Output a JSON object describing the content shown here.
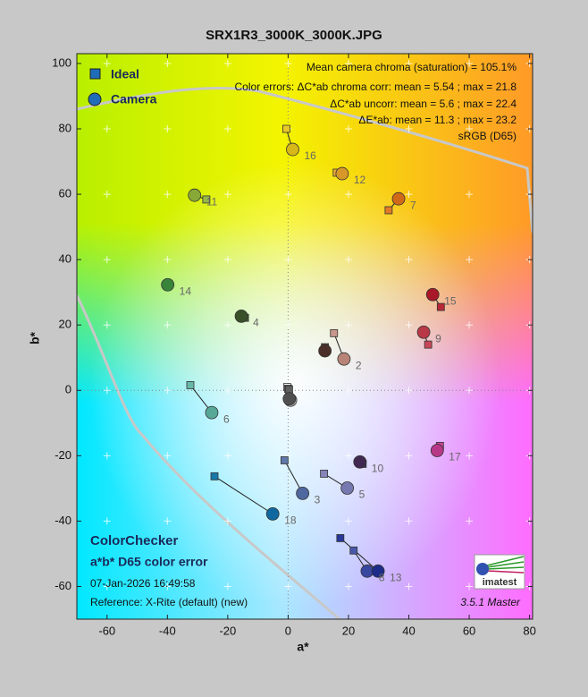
{
  "chart_data": {
    "type": "scatter",
    "title": "SRX1R3_3000K_3000K.JPG",
    "x_label": "a*",
    "y_label": "b*",
    "xlim": [
      -70,
      81
    ],
    "ylim": [
      -70,
      103
    ],
    "xticks": [
      -60,
      -40,
      -20,
      0,
      20,
      40,
      60,
      80
    ],
    "yticks": [
      -60,
      -40,
      -20,
      0,
      20,
      40,
      60,
      80,
      100
    ],
    "grid": true,
    "legend_position": "upper left",
    "point_labels": [
      null,
      "2",
      "3",
      "4",
      "5",
      "6",
      "7",
      "8",
      "9",
      "10",
      "11",
      "12",
      "13",
      "14",
      "15",
      "16",
      "17",
      "18",
      null,
      null,
      null
    ],
    "series": [
      {
        "name": "Ideal",
        "marker": "square",
        "color": "#1f6cb8",
        "x": [
          12.2,
          15.2,
          -1.2,
          -14.3,
          11.9,
          -32.4,
          33.3,
          21.7,
          46.4,
          24.7,
          -27.1,
          16.1,
          17.3,
          -39.6,
          50.6,
          -0.6,
          50.3,
          -24.4,
          -0.3,
          0.0,
          0.3
        ],
        "y": [
          13.2,
          17.5,
          -21.4,
          22.2,
          -25.5,
          1.6,
          55.1,
          -49.0,
          14.0,
          -22.5,
          58.4,
          66.6,
          -45.2,
          32.6,
          25.5,
          80.0,
          -17.0,
          -26.3,
          1.0,
          0.5,
          0.3
        ],
        "colors": [
          "#6a4838",
          "#c8968a",
          "#6078a8",
          "#4a6434",
          "#8484b8",
          "#68b8a8",
          "#e07a28",
          "#4858a8",
          "#c84858",
          "#583868",
          "#98b848",
          "#e8a838",
          "#283898",
          "#48944a",
          "#b82838",
          "#e8c828",
          "#c84898",
          "#1878a8",
          "#ffffff",
          "#b8b8b8",
          "#606060"
        ]
      },
      {
        "name": "Camera",
        "marker": "circle",
        "color": "#1f6cb8",
        "x": [
          12.2,
          18.5,
          4.8,
          -15.5,
          19.6,
          -25.3,
          36.6,
          26.2,
          44.9,
          23.8,
          -31.0,
          17.9,
          29.8,
          -39.9,
          47.9,
          1.5,
          49.4,
          -5.1,
          0.6,
          0.8,
          0.4
        ],
        "y": [
          12.1,
          9.6,
          -31.5,
          22.7,
          -29.9,
          -6.8,
          58.6,
          -55.3,
          17.8,
          -21.9,
          59.7,
          66.3,
          -55.3,
          32.3,
          29.3,
          73.7,
          -18.4,
          -37.8,
          -2.8,
          -3.0,
          -2.6
        ],
        "colors": [
          "#4a3028",
          "#b88478",
          "#5068a0",
          "#3a5028",
          "#7878b0",
          "#58a898",
          "#d06a18",
          "#3848a0",
          "#b83848",
          "#402850",
          "#88a838",
          "#d89828",
          "#1c2c88",
          "#38843a",
          "#a81828",
          "#d8b818",
          "#b83888",
          "#1068a0",
          "#f0f0f0",
          "#b0b0b0",
          "#505050"
        ]
      }
    ],
    "info_lines": [
      "Mean camera chroma (saturation) = 105.1%",
      "Color errors: ΔC*ab chroma corr:  mean = 5.54 ;  max = 21.8",
      "ΔC*ab uncorr:  mean = 5.6 ;  max = 22.4",
      "ΔE*ab:  mean = 11.3 ;  max = 23.2",
      "sRGB (D65)"
    ],
    "chart_name": "ColorChecker",
    "chart_subtitle": "a*b* D65 color error",
    "date": "07-Jan-2026 16:49:58",
    "reference": "Reference: X-Rite (default) (new)",
    "logo_text": "imatest",
    "version": "3.5.1  Master"
  }
}
